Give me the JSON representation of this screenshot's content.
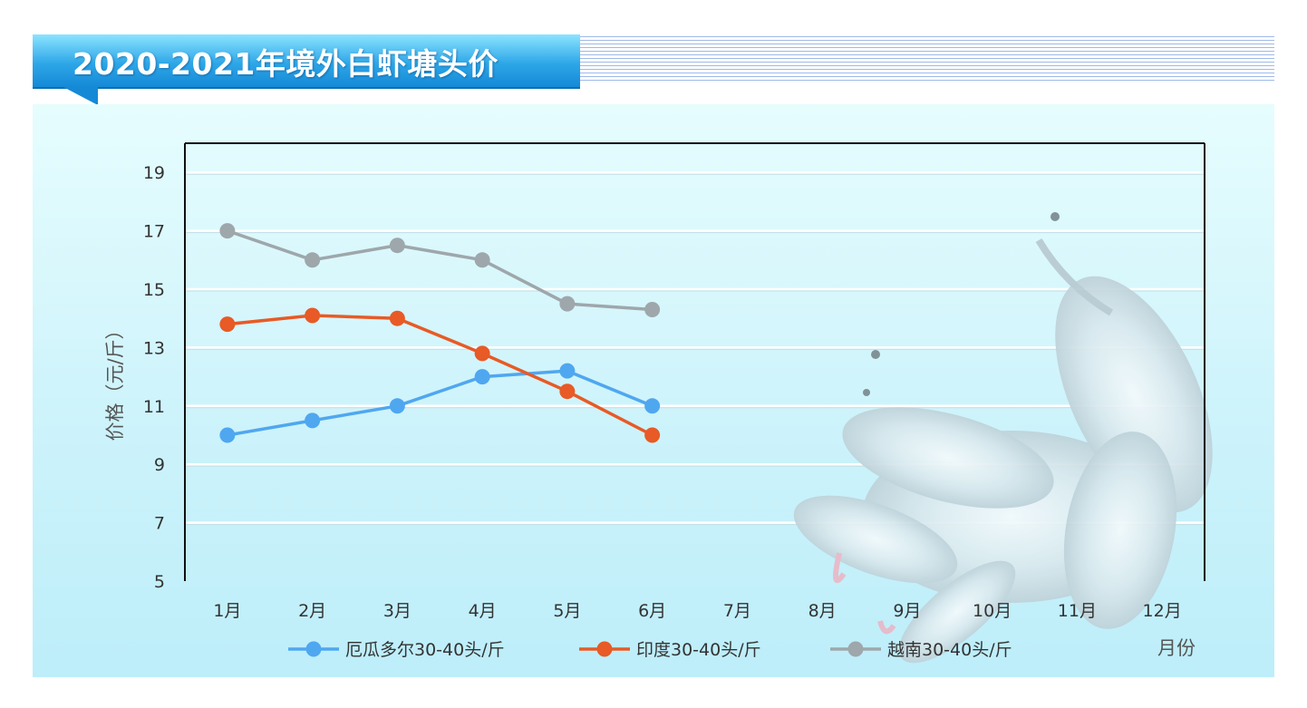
{
  "title": "2020-2021年境外白虾塘头价",
  "colors": {
    "banner": "#2ea7e8",
    "panel": "#d4f6fc",
    "series": [
      "#4fa7f0",
      "#e85a26",
      "#9ea7ab"
    ]
  },
  "chart_data": {
    "type": "line",
    "title": "2020-2021年境外白虾塘头价",
    "ylabel": "价格（元/斤）",
    "xlabel": "月份",
    "ylim": [
      5,
      20
    ],
    "yticks": [
      5,
      7,
      9,
      11,
      13,
      15,
      17,
      19
    ],
    "grid": true,
    "legend_position": "bottom",
    "categories": [
      "1月",
      "2月",
      "3月",
      "4月",
      "5月",
      "6月",
      "7月",
      "8月",
      "9月",
      "10月",
      "11月",
      "12月"
    ],
    "series": [
      {
        "name": "厄瓜多尔30-40头/斤",
        "color": "#4fa7f0",
        "values": [
          10,
          10.5,
          11,
          12,
          12.2,
          11,
          null,
          null,
          null,
          null,
          null,
          null
        ]
      },
      {
        "name": "印度30-40头/斤",
        "color": "#e85a26",
        "values": [
          13.8,
          14.1,
          14,
          12.8,
          11.5,
          10,
          null,
          null,
          null,
          null,
          null,
          null
        ]
      },
      {
        "name": "越南30-40头/斤",
        "color": "#9ea7ab",
        "values": [
          17,
          16,
          16.5,
          16,
          14.5,
          14.3,
          null,
          null,
          null,
          null,
          null,
          null
        ]
      }
    ]
  }
}
